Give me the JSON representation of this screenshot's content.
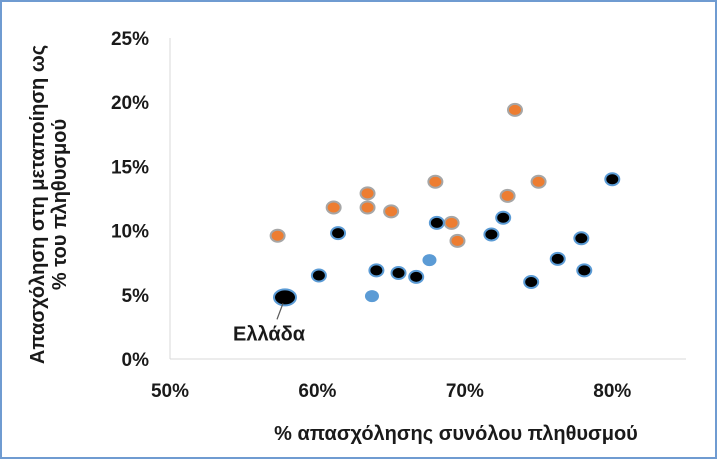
{
  "chart_data": {
    "type": "scatter",
    "title": "",
    "xlabel": "% απασχόλησης συνόλου πληθυσμού",
    "ylabel_lines": [
      "Απασχόληση στη μεταποίηση ως",
      "% του πληθυσμού"
    ],
    "xlim": [
      50,
      85
    ],
    "ylim": [
      0,
      25
    ],
    "x_ticks": [
      50,
      60,
      70,
      80
    ],
    "x_tick_labels": [
      "50%",
      "60%",
      "70%",
      "80%"
    ],
    "y_ticks": [
      0,
      5,
      10,
      15,
      20,
      25
    ],
    "y_tick_labels": [
      "0%",
      "5%",
      "10%",
      "15%",
      "20%",
      "25%"
    ],
    "grid": false,
    "legend": "none",
    "annotation": {
      "text": "Ελλάδα",
      "x": 57.8,
      "y": 4.8
    },
    "series": [
      {
        "style": "orange",
        "fill": "#ed7d31",
        "outline": "#a6a6a6",
        "points": [
          [
            57.3,
            9.6
          ],
          [
            61.1,
            11.8
          ],
          [
            63.4,
            11.8
          ],
          [
            63.4,
            12.9
          ],
          [
            65.0,
            11.5
          ],
          [
            68.0,
            13.8
          ],
          [
            69.1,
            10.6
          ],
          [
            69.5,
            9.2
          ],
          [
            72.9,
            12.7
          ],
          [
            73.4,
            19.4
          ],
          [
            75.0,
            13.8
          ]
        ]
      },
      {
        "style": "black",
        "fill": "#000000",
        "outline": "#5b9bd5",
        "points": [
          [
            57.8,
            4.8
          ],
          [
            60.1,
            6.5
          ],
          [
            61.4,
            9.8
          ],
          [
            64.0,
            6.9
          ],
          [
            65.5,
            6.7
          ],
          [
            66.7,
            6.4
          ],
          [
            68.1,
            10.6
          ],
          [
            71.8,
            9.7
          ],
          [
            72.6,
            11.0
          ],
          [
            74.5,
            6.0
          ],
          [
            76.3,
            7.8
          ],
          [
            77.9,
            9.4
          ],
          [
            78.1,
            6.9
          ],
          [
            80.0,
            14.0
          ]
        ]
      },
      {
        "style": "blue",
        "fill": "#5b9bd5",
        "outline": "#5b9bd5",
        "points": [
          [
            63.7,
            4.9
          ],
          [
            67.6,
            7.7
          ]
        ]
      }
    ],
    "colors": {
      "axis": "#d9d9d9",
      "frame": "#6f9bd1",
      "text": "#1a1a1a"
    }
  }
}
